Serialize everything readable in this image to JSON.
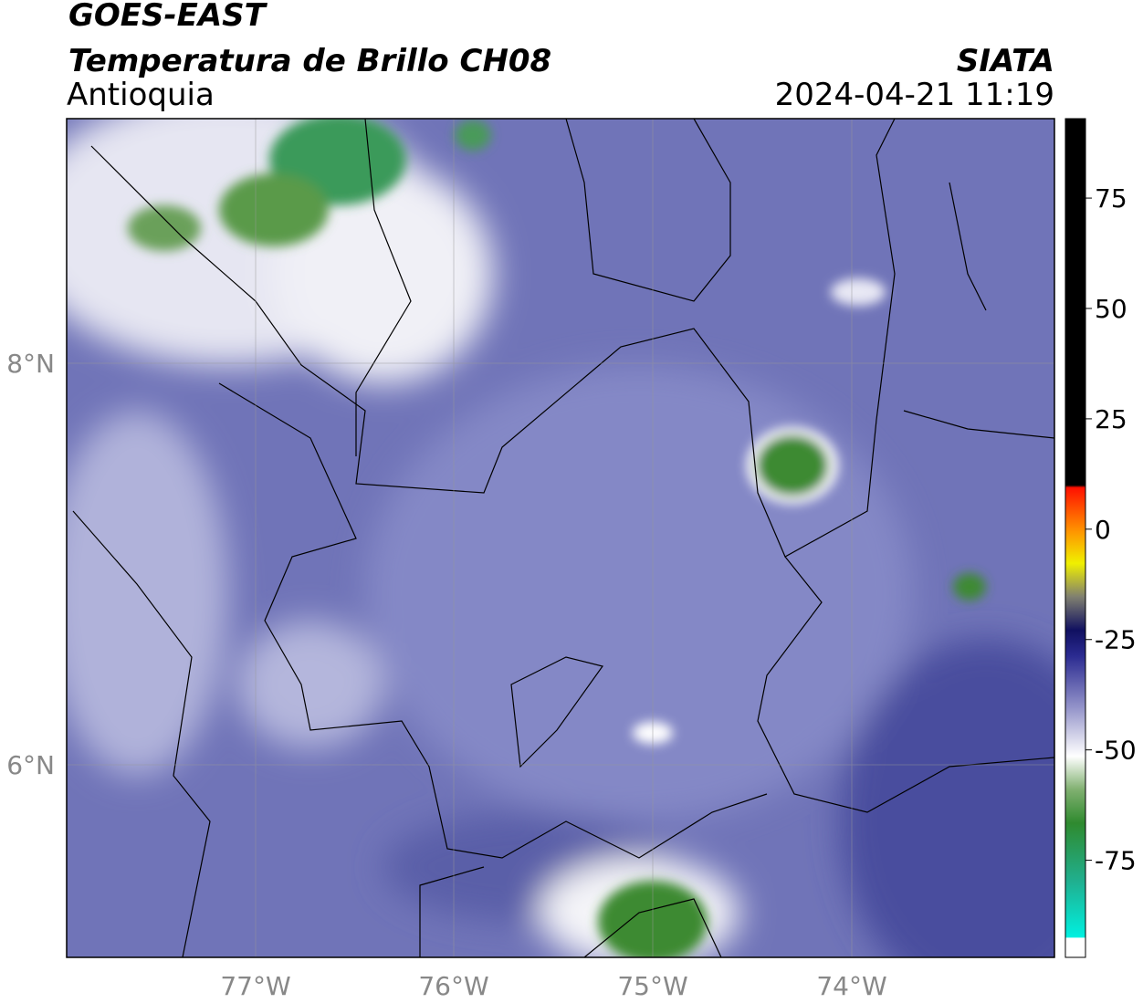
{
  "header": {
    "title": "GOES-EAST",
    "product": "Temperatura de Brillo CH08",
    "region": "Antioquia",
    "source": "SIATA",
    "datetime": "2024-04-21 11:19"
  },
  "map": {
    "lat_labels": [
      "8°N",
      "6°N"
    ],
    "lon_labels": [
      "77°W",
      "76°W",
      "75°W",
      "74°W"
    ]
  },
  "colorbar": {
    "limits": [
      -97,
      93
    ],
    "ticks": [
      75,
      50,
      25,
      0,
      -25,
      -50,
      -75
    ]
  }
}
